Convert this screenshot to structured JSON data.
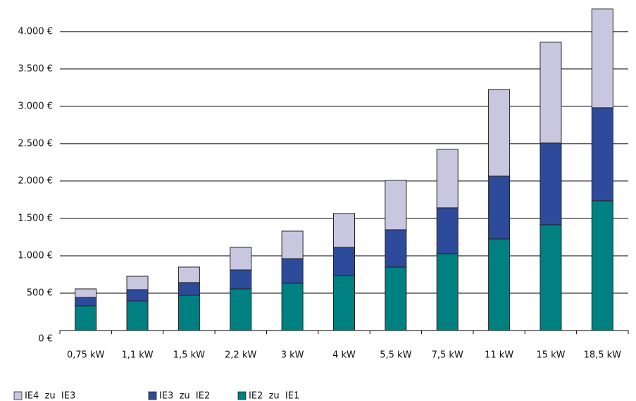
{
  "chart_data": {
    "type": "stacked-bar",
    "categories": [
      "0,75 kW",
      "1,1 kW",
      "1,5 kW",
      "2,2 kW",
      "3 kW",
      "4 kW",
      "5,5 kW",
      "7,5 kW",
      "11 kW",
      "15 kW",
      "18,5 kW"
    ],
    "series": [
      {
        "name": "IE2  zu  IE1",
        "color": "#008080",
        "values": [
          330,
          396,
          472,
          557,
          632,
          736,
          849,
          1028,
          1226,
          1415,
          1736
        ]
      },
      {
        "name": "IE3  zu  IE2",
        "color": "#2e4a9a",
        "values": [
          113,
          151,
          170,
          254,
          330,
          377,
          500,
          614,
          840,
          1094,
          1245
        ]
      },
      {
        "name": "IE4  zu  IE3",
        "color": "#c9c7e0",
        "values": [
          114,
          179,
          207,
          302,
          368,
          453,
          660,
          783,
          1160,
          1349,
          1321
        ]
      }
    ],
    "ylim": [
      0,
      4300
    ],
    "yticks": [
      {
        "value": 0,
        "label": "0 €"
      },
      {
        "value": 500,
        "label": "500 €"
      },
      {
        "value": 1000,
        "label": "1.000 €"
      },
      {
        "value": 1500,
        "label": "1.500 €"
      },
      {
        "value": 2000,
        "label": "2.000 €"
      },
      {
        "value": 2500,
        "label": "2.500 €"
      },
      {
        "value": 3000,
        "label": "3.000 €"
      },
      {
        "value": 3500,
        "label": "3.500 €"
      },
      {
        "value": 4000,
        "label": "4.000 €"
      }
    ],
    "grid": true
  }
}
